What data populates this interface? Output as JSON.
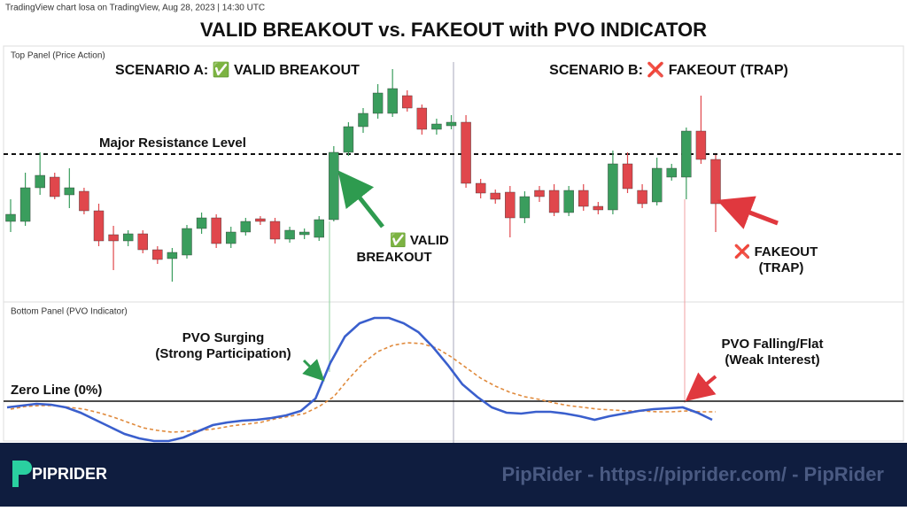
{
  "header": {
    "source": "TradingView chart losa on TradingView, Aug 28, 2023 | 14:30 UTC",
    "title": "VALID BREAKOUT vs. FAKEOUT with PVO INDICATOR"
  },
  "chart_data": [
    {
      "type": "candlestick",
      "panel_label": "Top Panel (Price Action)",
      "scenario_a": "SCENARIO A: ✅ VALID BREAKOUT",
      "scenario_b": "SCENARIO B: ❌ FAKEOUT (TRAP)",
      "resistance_label": "Major Resistance Level",
      "resistance": 156,
      "annotations": [
        [
          "✅ VALID",
          "BREAKOUT"
        ],
        [
          "❌ FAKEOUT",
          "(TRAP)"
        ]
      ],
      "up_color": "#3a9d5d",
      "down_color": "#e0474c",
      "ylim": [
        0,
        260
      ],
      "open": [
        80,
        80,
        118,
        130,
        110,
        114,
        92,
        65,
        58,
        66,
        48,
        38,
        42,
        72,
        84,
        55,
        68,
        83,
        80,
        60,
        65,
        62,
        82,
        158,
        187,
        202,
        202,
        222,
        208,
        184,
        188,
        192,
        123,
        112,
        113,
        84,
        115,
        115,
        90,
        115,
        97,
        93,
        145,
        115,
        102,
        130,
        130,
        182,
        150
      ],
      "high": [
        105,
        135,
        158,
        135,
        140,
        118,
        100,
        75,
        70,
        70,
        52,
        50,
        76,
        90,
        88,
        74,
        84,
        86,
        84,
        74,
        72,
        86,
        165,
        192,
        208,
        235,
        252,
        228,
        212,
        196,
        200,
        200,
        128,
        116,
        120,
        114,
        120,
        122,
        120,
        122,
        102,
        160,
        158,
        122,
        152,
        145,
        186,
        222,
        155
      ],
      "low": [
        68,
        75,
        110,
        105,
        95,
        88,
        52,
        25,
        52,
        44,
        32,
        12,
        38,
        66,
        50,
        50,
        64,
        76,
        55,
        56,
        60,
        58,
        80,
        154,
        180,
        196,
        198,
        204,
        178,
        178,
        184,
        118,
        106,
        100,
        62,
        78,
        102,
        86,
        86,
        92,
        88,
        88,
        112,
        95,
        98,
        126,
        105,
        145,
        68
      ],
      "close": [
        88,
        118,
        132,
        108,
        118,
        92,
        58,
        58,
        66,
        48,
        37,
        45,
        72,
        84,
        55,
        68,
        80,
        80,
        60,
        70,
        68,
        82,
        158,
        187,
        202,
        225,
        230,
        208,
        184,
        190,
        192,
        123,
        112,
        105,
        84,
        108,
        108,
        90,
        115,
        97,
        93,
        145,
        117,
        100,
        140,
        140,
        182,
        150,
        100
      ]
    },
    {
      "type": "line",
      "panel_label": "Bottom Panel (PVO Indicator)",
      "zero_label": "Zero Line (0%)",
      "zero": 0,
      "annotations": [
        [
          "PVO Surging",
          "(Strong Participation)"
        ],
        [
          "PVO Falling/Flat",
          "(Weak Interest)"
        ]
      ],
      "ylim": [
        -47,
        98
      ],
      "series": [
        {
          "color": "#3a5fcd",
          "dashed": false,
          "values": [
            -7,
            -5,
            -3,
            -4,
            -7,
            -13,
            -21,
            -29,
            -37,
            -42,
            -45,
            -45,
            -41,
            -34,
            -27,
            -24,
            -22,
            -21,
            -19,
            -16,
            -11,
            3,
            43,
            73,
            88,
            94,
            94,
            88,
            78,
            61,
            41,
            19,
            5,
            -7,
            -13,
            -14,
            -12,
            -12,
            -14,
            -17,
            -21,
            -17,
            -14,
            -11,
            -9,
            -8,
            -7,
            -13,
            -21
          ]
        },
        {
          "color": "#e08a3c",
          "dashed": true,
          "values": [
            -9,
            -6,
            -5,
            -5,
            -7,
            -9,
            -13,
            -18,
            -24,
            -30,
            -33,
            -35,
            -34,
            -33,
            -31,
            -28,
            -26,
            -24,
            -20,
            -17,
            -14,
            -6,
            5,
            25,
            43,
            56,
            63,
            66,
            65,
            60,
            50,
            38,
            26,
            17,
            10,
            5,
            2,
            -2,
            -5,
            -7,
            -9,
            -10,
            -11,
            -11,
            -12,
            -12,
            -11,
            -12,
            -12
          ]
        }
      ]
    }
  ],
  "footer": {
    "brand": "PIPRIDER",
    "watermark": "PipRider - https://piprider.com/ - PipRider"
  }
}
